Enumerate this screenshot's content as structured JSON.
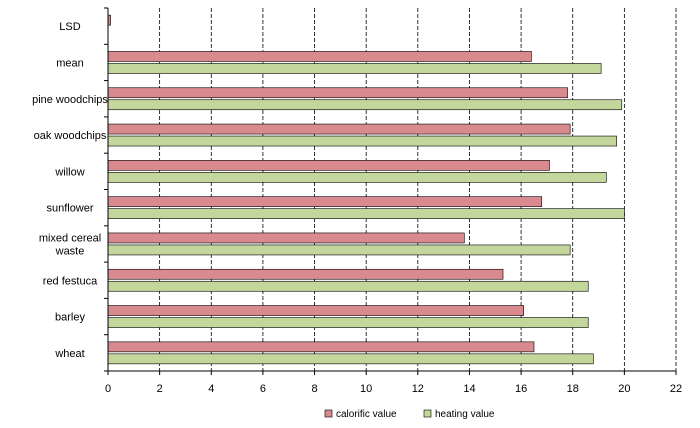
{
  "chart_data": {
    "type": "bar",
    "orientation": "horizontal",
    "categories": [
      "LSD",
      "mean",
      "pine woodchips",
      "oak woodchips",
      "willow",
      "sunflower",
      "mixed cereal waste",
      "red festuca",
      "barley",
      "wheat"
    ],
    "category_lines": [
      [
        "LSD"
      ],
      [
        "mean"
      ],
      [
        "pine woodchips"
      ],
      [
        "oak woodchips"
      ],
      [
        "willow"
      ],
      [
        "sunflower"
      ],
      [
        "mixed cereal",
        "waste"
      ],
      [
        "red festuca"
      ],
      [
        "barley"
      ],
      [
        "wheat"
      ]
    ],
    "series": [
      {
        "name": "calorific value",
        "color": "#d98a8f",
        "values": [
          0.1,
          16.4,
          17.8,
          17.9,
          17.1,
          16.8,
          13.8,
          15.3,
          16.1,
          16.5
        ]
      },
      {
        "name": "heating value",
        "color": "#c3d69b",
        "values": [
          null,
          19.1,
          19.9,
          19.7,
          19.3,
          20.0,
          17.9,
          18.6,
          18.6,
          18.8
        ]
      }
    ],
    "xticks": [
      "0",
      "2",
      "4",
      "6",
      "8",
      "10",
      "12",
      "14",
      "16",
      "18",
      "20",
      "22"
    ],
    "xlim": [
      0,
      22
    ],
    "grid": true,
    "legend_position": "bottom"
  }
}
